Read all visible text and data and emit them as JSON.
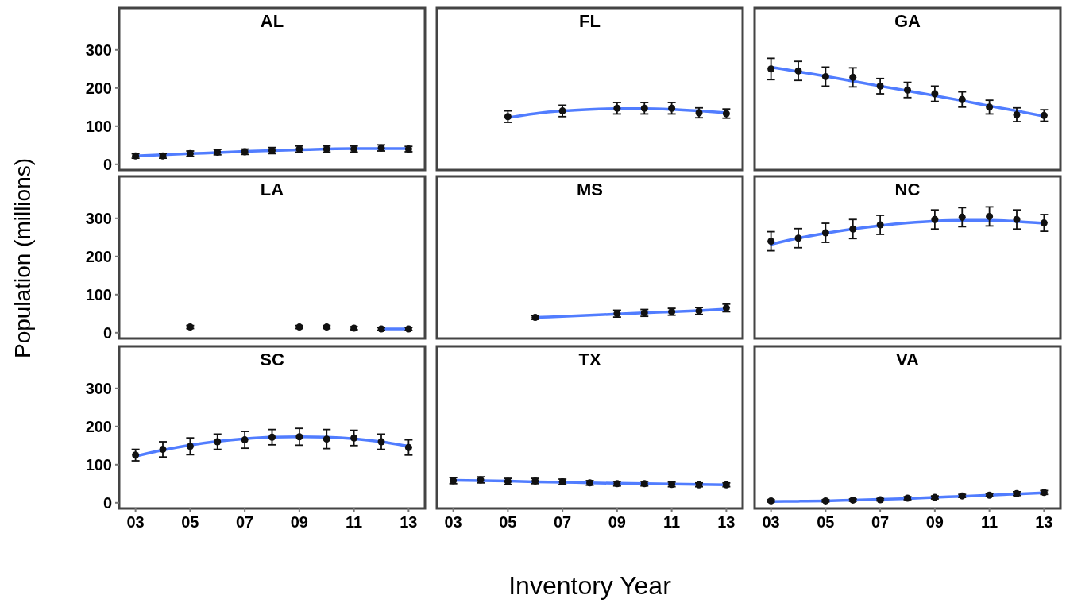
{
  "chart_data": [
    {
      "type": "scatter",
      "title": "AL",
      "tick_labels": "y",
      "xlim": [
        2.4,
        13.6
      ],
      "ylim": [
        -15,
        410
      ],
      "yticks": [
        0,
        100,
        200,
        300
      ],
      "series": [
        {
          "marker": "circle",
          "color": "#111111",
          "x": [
            3,
            4,
            5,
            6,
            7,
            8,
            9,
            10,
            11,
            12,
            13
          ],
          "values": [
            22,
            22,
            28,
            32,
            33,
            36,
            40,
            40,
            40,
            43,
            40
          ],
          "errors": [
            6,
            6,
            7,
            7,
            7,
            8,
            8,
            8,
            8,
            8,
            7
          ]
        },
        {
          "type": "line",
          "color": "#3366ff",
          "x": [
            3,
            4,
            5,
            6,
            7,
            8,
            9,
            10,
            11,
            12,
            13
          ],
          "values": [
            22,
            25,
            28,
            31,
            34,
            36,
            38,
            40,
            41,
            41,
            41
          ]
        }
      ]
    },
    {
      "type": "scatter",
      "title": "FL",
      "tick_labels": false,
      "xlim": [
        2.4,
        13.6
      ],
      "ylim": [
        -15,
        410
      ],
      "series": [
        {
          "marker": "circle",
          "color": "#111111",
          "x": [
            5,
            7,
            9,
            10,
            11,
            12,
            13
          ],
          "values": [
            125,
            140,
            147,
            147,
            147,
            135,
            133
          ],
          "errors": [
            15,
            15,
            15,
            15,
            15,
            13,
            12
          ]
        },
        {
          "type": "line",
          "color": "#3366ff",
          "x": [
            5,
            6,
            7,
            8,
            9,
            10,
            11,
            12,
            13
          ],
          "values": [
            122,
            133,
            140,
            144,
            146,
            146,
            144,
            140,
            135
          ]
        }
      ]
    },
    {
      "type": "scatter",
      "title": "GA",
      "tick_labels": false,
      "xlim": [
        2.4,
        13.6
      ],
      "ylim": [
        -15,
        410
      ],
      "series": [
        {
          "marker": "circle",
          "color": "#111111",
          "x": [
            3,
            4,
            5,
            6,
            7,
            8,
            9,
            10,
            11,
            12,
            13
          ],
          "values": [
            250,
            245,
            230,
            228,
            205,
            195,
            185,
            170,
            150,
            130,
            128
          ],
          "errors": [
            28,
            25,
            25,
            25,
            20,
            20,
            20,
            20,
            18,
            18,
            15
          ]
        },
        {
          "type": "line",
          "color": "#3366ff",
          "x": [
            3,
            4,
            5,
            6,
            7,
            8,
            9,
            10,
            11,
            12,
            13
          ],
          "values": [
            255,
            243,
            231,
            218,
            205,
            193,
            180,
            167,
            153,
            140,
            126
          ]
        }
      ]
    },
    {
      "type": "scatter",
      "title": "LA",
      "ylabel": "Population (millions)",
      "tick_labels": "y",
      "xlim": [
        2.4,
        13.6
      ],
      "ylim": [
        -15,
        410
      ],
      "yticks": [
        0,
        100,
        200,
        300
      ],
      "series": [
        {
          "marker": "circle",
          "color": "#111111",
          "x": [
            5,
            9,
            10,
            11,
            12,
            13
          ],
          "values": [
            15,
            15,
            15,
            12,
            10,
            10
          ],
          "errors": [
            4,
            4,
            4,
            4,
            4,
            4
          ]
        },
        {
          "type": "line",
          "color": "#3366ff",
          "x": [
            12,
            13
          ],
          "values": [
            10,
            10
          ]
        }
      ]
    },
    {
      "type": "scatter",
      "title": "MS",
      "tick_labels": false,
      "xlim": [
        2.4,
        13.6
      ],
      "ylim": [
        -15,
        410
      ],
      "series": [
        {
          "marker": "circle",
          "color": "#111111",
          "x": [
            6,
            9,
            10,
            11,
            12,
            13
          ],
          "values": [
            40,
            50,
            52,
            55,
            57,
            65
          ],
          "errors": [
            5,
            9,
            9,
            9,
            9,
            10
          ]
        },
        {
          "type": "line",
          "color": "#3366ff",
          "x": [
            6,
            7,
            8,
            9,
            10,
            11,
            12,
            13
          ],
          "values": [
            40,
            43,
            46,
            49,
            52,
            55,
            58,
            62
          ]
        }
      ]
    },
    {
      "type": "scatter",
      "title": "NC",
      "tick_labels": false,
      "xlim": [
        2.4,
        13.6
      ],
      "ylim": [
        -15,
        410
      ],
      "series": [
        {
          "marker": "circle",
          "color": "#111111",
          "x": [
            3,
            4,
            5,
            6,
            7,
            9,
            10,
            11,
            12,
            13
          ],
          "values": [
            240,
            248,
            262,
            272,
            283,
            297,
            303,
            305,
            297,
            288
          ],
          "errors": [
            25,
            25,
            25,
            25,
            25,
            25,
            25,
            25,
            25,
            22
          ]
        },
        {
          "type": "line",
          "color": "#3366ff",
          "x": [
            3,
            4,
            5,
            6,
            7,
            8,
            9,
            10,
            11,
            12,
            13
          ],
          "values": [
            232,
            248,
            261,
            272,
            281,
            288,
            293,
            295,
            295,
            292,
            287
          ]
        }
      ]
    },
    {
      "type": "scatter",
      "title": "SC",
      "xlim": [
        2.4,
        13.6
      ],
      "ylim": [
        -15,
        410
      ],
      "yticks": [
        0,
        100,
        200,
        300
      ],
      "xticks": [
        {
          "value": 3,
          "label": "03"
        },
        {
          "value": 5,
          "label": "05"
        },
        {
          "value": 7,
          "label": "07"
        },
        {
          "value": 9,
          "label": "09"
        },
        {
          "value": 11,
          "label": "11"
        },
        {
          "value": 13,
          "label": "13"
        }
      ],
      "series": [
        {
          "marker": "circle",
          "color": "#111111",
          "x": [
            3,
            4,
            5,
            6,
            7,
            8,
            9,
            10,
            11,
            12,
            13
          ],
          "values": [
            125,
            140,
            148,
            160,
            165,
            172,
            173,
            167,
            170,
            160,
            145
          ],
          "errors": [
            15,
            20,
            22,
            20,
            22,
            20,
            22,
            25,
            20,
            20,
            20
          ]
        },
        {
          "type": "line",
          "color": "#3366ff",
          "x": [
            3,
            4,
            5,
            6,
            7,
            8,
            9,
            10,
            11,
            12,
            13
          ],
          "values": [
            122,
            138,
            151,
            161,
            168,
            172,
            173,
            172,
            168,
            160,
            148
          ]
        }
      ]
    },
    {
      "type": "scatter",
      "title": "TX",
      "xlabel": "Inventory Year",
      "tick_labels": "x",
      "xlim": [
        2.4,
        13.6
      ],
      "ylim": [
        -15,
        410
      ],
      "xticks": [
        {
          "value": 3,
          "label": "03"
        },
        {
          "value": 5,
          "label": "05"
        },
        {
          "value": 7,
          "label": "07"
        },
        {
          "value": 9,
          "label": "09"
        },
        {
          "value": 11,
          "label": "11"
        },
        {
          "value": 13,
          "label": "13"
        }
      ],
      "series": [
        {
          "marker": "circle",
          "color": "#111111",
          "x": [
            3,
            4,
            5,
            6,
            7,
            8,
            9,
            10,
            11,
            12,
            13
          ],
          "values": [
            58,
            60,
            56,
            57,
            55,
            52,
            50,
            50,
            48,
            47,
            47
          ],
          "errors": [
            8,
            8,
            8,
            7,
            7,
            6,
            6,
            6,
            6,
            5,
            5
          ]
        },
        {
          "type": "line",
          "color": "#3366ff",
          "x": [
            3,
            4,
            5,
            6,
            7,
            8,
            9,
            10,
            11,
            12,
            13
          ],
          "values": [
            59,
            58,
            57,
            55,
            54,
            52,
            51,
            50,
            49,
            48,
            47
          ]
        }
      ]
    },
    {
      "type": "scatter",
      "title": "VA",
      "tick_labels": "x",
      "xlim": [
        2.4,
        13.6
      ],
      "ylim": [
        -15,
        410
      ],
      "xticks": [
        {
          "value": 3,
          "label": "03"
        },
        {
          "value": 5,
          "label": "05"
        },
        {
          "value": 7,
          "label": "07"
        },
        {
          "value": 9,
          "label": "09"
        },
        {
          "value": 11,
          "label": "11"
        },
        {
          "value": 13,
          "label": "13"
        }
      ],
      "series": [
        {
          "marker": "circle",
          "color": "#111111",
          "x": [
            3,
            5,
            6,
            7,
            8,
            9,
            10,
            11,
            12,
            13
          ],
          "values": [
            5,
            5,
            7,
            8,
            12,
            14,
            18,
            20,
            24,
            27
          ],
          "errors": [
            3,
            3,
            3,
            3,
            4,
            4,
            4,
            4,
            5,
            5
          ]
        },
        {
          "type": "line",
          "color": "#3366ff",
          "x": [
            3,
            4,
            5,
            6,
            7,
            8,
            9,
            10,
            11,
            12,
            13
          ],
          "values": [
            3,
            4,
            5,
            7,
            9,
            11,
            14,
            17,
            20,
            23,
            26
          ]
        }
      ]
    }
  ]
}
